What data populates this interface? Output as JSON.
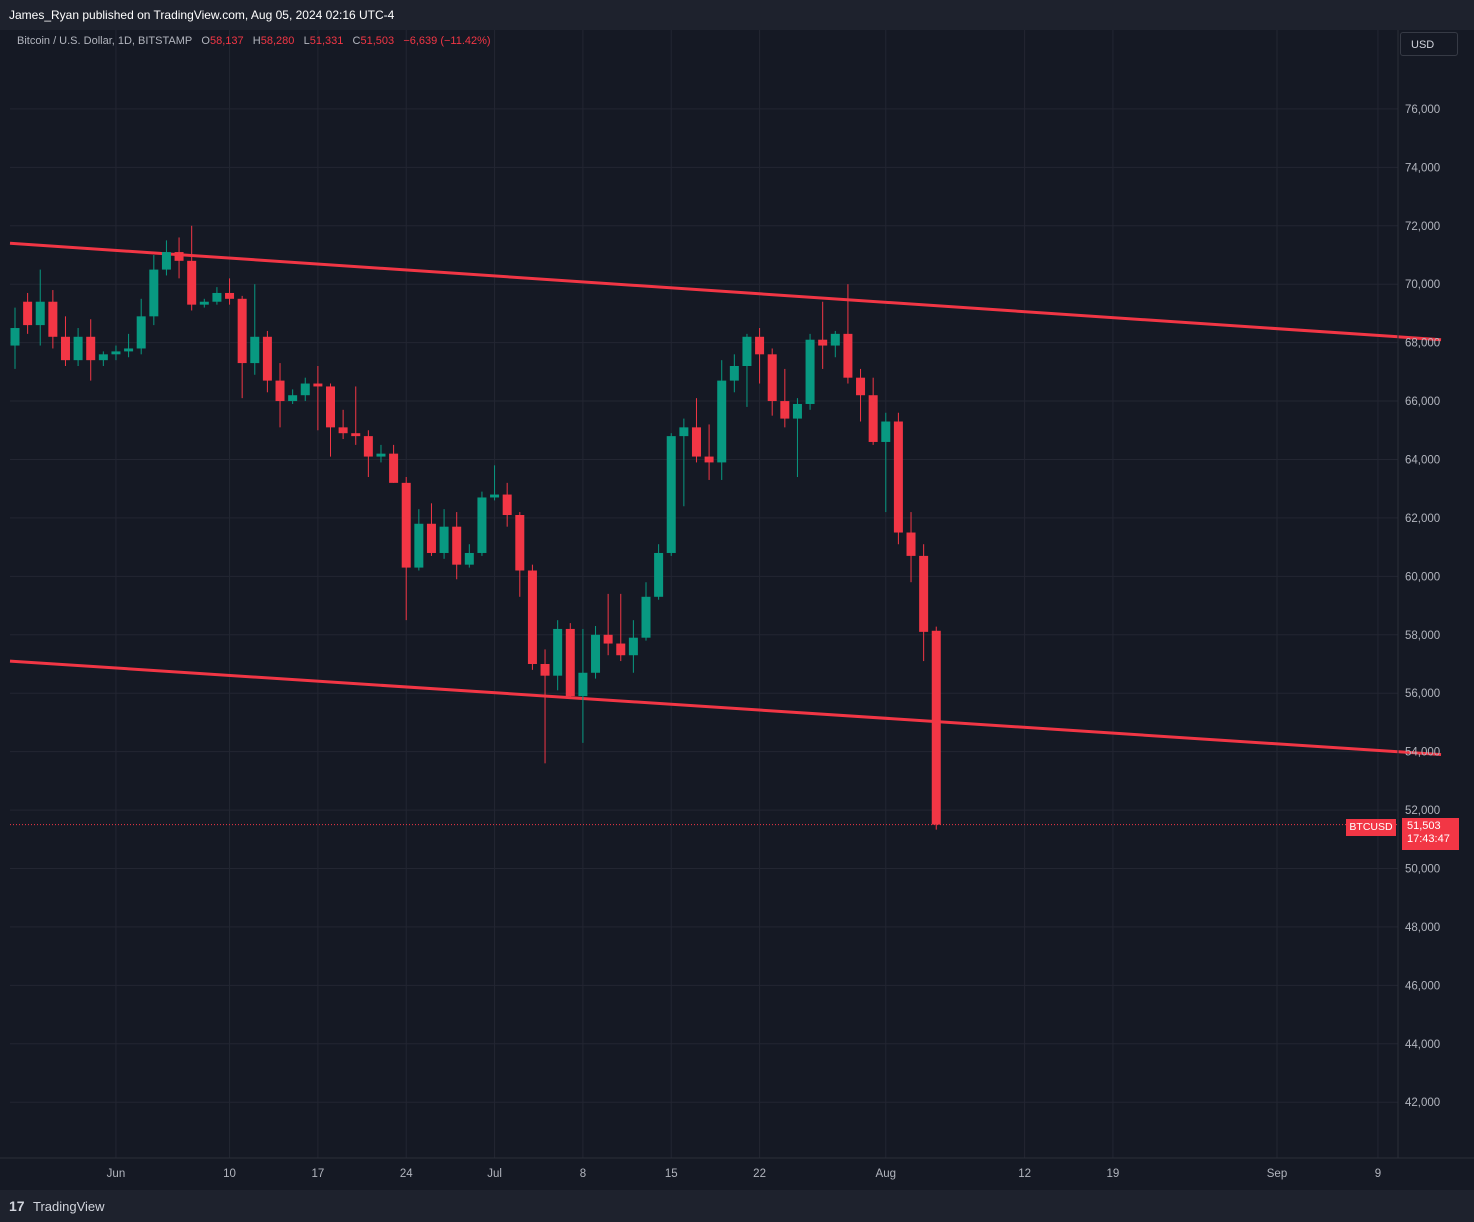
{
  "header": {
    "published": "James_Ryan published on TradingView.com, Aug 05, 2024 02:16 UTC-4"
  },
  "legend": {
    "symbol": "Bitcoin / U.S. Dollar, 1D, BITSTAMP",
    "open_label": "O",
    "open": "58,137",
    "high_label": "H",
    "high": "58,280",
    "low_label": "L",
    "low": "51,331",
    "close_label": "C",
    "close": "51,503",
    "change": "−6,639 (−11.42%)"
  },
  "currency_button": "USD",
  "price_tag": {
    "symbol": "BTCUSD",
    "price": "51,503",
    "countdown": "17:43:47"
  },
  "footer": {
    "logo": "17",
    "brand": "TradingView"
  },
  "colors": {
    "up": "#089981",
    "down": "#f23645",
    "channel": "#f23645",
    "grid": "#232632",
    "background": "#151924"
  },
  "chart_data": {
    "type": "candlestick",
    "title": "Bitcoin / U.S. Dollar, 1D, BITSTAMP",
    "ylim": [
      40000,
      78000
    ],
    "y_ticks": [
      "76,000",
      "74,000",
      "72,000",
      "70,000",
      "68,000",
      "66,000",
      "64,000",
      "62,000",
      "60,000",
      "58,000",
      "56,000",
      "54,000",
      "52,000",
      "50,000",
      "48,000",
      "46,000",
      "44,000",
      "42,000"
    ],
    "x_ticks": [
      {
        "label": "Jun",
        "date": "2024-06-01"
      },
      {
        "label": "10",
        "date": "2024-06-10"
      },
      {
        "label": "17",
        "date": "2024-06-17"
      },
      {
        "label": "24",
        "date": "2024-06-24"
      },
      {
        "label": "Jul",
        "date": "2024-07-01"
      },
      {
        "label": "8",
        "date": "2024-07-08"
      },
      {
        "label": "15",
        "date": "2024-07-15"
      },
      {
        "label": "22",
        "date": "2024-07-22"
      },
      {
        "label": "Aug",
        "date": "2024-08-01"
      },
      {
        "label": "12",
        "date": "2024-08-12"
      },
      {
        "label": "19",
        "date": "2024-08-19"
      },
      {
        "label": "Sep",
        "date": "2024-09-01"
      },
      {
        "label": "9",
        "date": "2024-09-09"
      }
    ],
    "candles": [
      {
        "date": "2024-05-24",
        "o": 67900,
        "h": 69200,
        "l": 67100,
        "c": 68500
      },
      {
        "date": "2024-05-25",
        "o": 69400,
        "h": 69700,
        "l": 68300,
        "c": 68600
      },
      {
        "date": "2024-05-26",
        "o": 68600,
        "h": 70500,
        "l": 67900,
        "c": 69400
      },
      {
        "date": "2024-05-27",
        "o": 69400,
        "h": 69800,
        "l": 67800,
        "c": 68200
      },
      {
        "date": "2024-05-28",
        "o": 68200,
        "h": 68900,
        "l": 67200,
        "c": 67400
      },
      {
        "date": "2024-05-29",
        "o": 67400,
        "h": 68500,
        "l": 67200,
        "c": 68200
      },
      {
        "date": "2024-05-30",
        "o": 68200,
        "h": 68800,
        "l": 66700,
        "c": 67400
      },
      {
        "date": "2024-05-31",
        "o": 67400,
        "h": 67700,
        "l": 67200,
        "c": 67600
      },
      {
        "date": "2024-06-01",
        "o": 67600,
        "h": 67900,
        "l": 67400,
        "c": 67700
      },
      {
        "date": "2024-06-02",
        "o": 67700,
        "h": 68300,
        "l": 67500,
        "c": 67800
      },
      {
        "date": "2024-06-03",
        "o": 67800,
        "h": 69500,
        "l": 67600,
        "c": 68900
      },
      {
        "date": "2024-06-04",
        "o": 68900,
        "h": 71000,
        "l": 68600,
        "c": 70500
      },
      {
        "date": "2024-06-05",
        "o": 70500,
        "h": 71500,
        "l": 70300,
        "c": 71100
      },
      {
        "date": "2024-06-06",
        "o": 71100,
        "h": 71600,
        "l": 70200,
        "c": 70800
      },
      {
        "date": "2024-06-07",
        "o": 70800,
        "h": 72000,
        "l": 69100,
        "c": 69300
      },
      {
        "date": "2024-06-08",
        "o": 69300,
        "h": 69500,
        "l": 69200,
        "c": 69400
      },
      {
        "date": "2024-06-09",
        "o": 69400,
        "h": 69900,
        "l": 69300,
        "c": 69700
      },
      {
        "date": "2024-06-10",
        "o": 69700,
        "h": 70200,
        "l": 69300,
        "c": 69500
      },
      {
        "date": "2024-06-11",
        "o": 69500,
        "h": 69600,
        "l": 66100,
        "c": 67300
      },
      {
        "date": "2024-06-12",
        "o": 67300,
        "h": 70000,
        "l": 66900,
        "c": 68200
      },
      {
        "date": "2024-06-13",
        "o": 68200,
        "h": 68400,
        "l": 66300,
        "c": 66700
      },
      {
        "date": "2024-06-14",
        "o": 66700,
        "h": 67300,
        "l": 65100,
        "c": 66000
      },
      {
        "date": "2024-06-15",
        "o": 66000,
        "h": 66400,
        "l": 65900,
        "c": 66200
      },
      {
        "date": "2024-06-16",
        "o": 66200,
        "h": 66800,
        "l": 66000,
        "c": 66600
      },
      {
        "date": "2024-06-17",
        "o": 66600,
        "h": 67200,
        "l": 65000,
        "c": 66500
      },
      {
        "date": "2024-06-18",
        "o": 66500,
        "h": 66600,
        "l": 64100,
        "c": 65100
      },
      {
        "date": "2024-06-19",
        "o": 65100,
        "h": 65700,
        "l": 64700,
        "c": 64900
      },
      {
        "date": "2024-06-20",
        "o": 64900,
        "h": 66500,
        "l": 64500,
        "c": 64800
      },
      {
        "date": "2024-06-21",
        "o": 64800,
        "h": 65000,
        "l": 63400,
        "c": 64100
      },
      {
        "date": "2024-06-22",
        "o": 64100,
        "h": 64500,
        "l": 63900,
        "c": 64200
      },
      {
        "date": "2024-06-23",
        "o": 64200,
        "h": 64500,
        "l": 63200,
        "c": 63200
      },
      {
        "date": "2024-06-24",
        "o": 63200,
        "h": 63400,
        "l": 58500,
        "c": 60300
      },
      {
        "date": "2024-06-25",
        "o": 60300,
        "h": 62300,
        "l": 60200,
        "c": 61800
      },
      {
        "date": "2024-06-26",
        "o": 61800,
        "h": 62500,
        "l": 60700,
        "c": 60800
      },
      {
        "date": "2024-06-27",
        "o": 60800,
        "h": 62300,
        "l": 60600,
        "c": 61700
      },
      {
        "date": "2024-06-28",
        "o": 61700,
        "h": 62200,
        "l": 59900,
        "c": 60400
      },
      {
        "date": "2024-06-29",
        "o": 60400,
        "h": 61100,
        "l": 60300,
        "c": 60800
      },
      {
        "date": "2024-06-30",
        "o": 60800,
        "h": 62900,
        "l": 60700,
        "c": 62700
      },
      {
        "date": "2024-07-01",
        "o": 62700,
        "h": 63800,
        "l": 62600,
        "c": 62800
      },
      {
        "date": "2024-07-02",
        "o": 62800,
        "h": 63200,
        "l": 61700,
        "c": 62100
      },
      {
        "date": "2024-07-03",
        "o": 62100,
        "h": 62200,
        "l": 59300,
        "c": 60200
      },
      {
        "date": "2024-07-04",
        "o": 60200,
        "h": 60400,
        "l": 56800,
        "c": 57000
      },
      {
        "date": "2024-07-05",
        "o": 57000,
        "h": 57500,
        "l": 53600,
        "c": 56600
      },
      {
        "date": "2024-07-06",
        "o": 56600,
        "h": 58500,
        "l": 56100,
        "c": 58200
      },
      {
        "date": "2024-07-07",
        "o": 58200,
        "h": 58400,
        "l": 55800,
        "c": 55900
      },
      {
        "date": "2024-07-08",
        "o": 55900,
        "h": 58200,
        "l": 54300,
        "c": 56700
      },
      {
        "date": "2024-07-09",
        "o": 56700,
        "h": 58300,
        "l": 56500,
        "c": 58000
      },
      {
        "date": "2024-07-10",
        "o": 58000,
        "h": 59400,
        "l": 57300,
        "c": 57700
      },
      {
        "date": "2024-07-11",
        "o": 57700,
        "h": 59400,
        "l": 57100,
        "c": 57300
      },
      {
        "date": "2024-07-12",
        "o": 57300,
        "h": 58500,
        "l": 56700,
        "c": 57900
      },
      {
        "date": "2024-07-13",
        "o": 57900,
        "h": 59800,
        "l": 57800,
        "c": 59300
      },
      {
        "date": "2024-07-14",
        "o": 59300,
        "h": 61100,
        "l": 59200,
        "c": 60800
      },
      {
        "date": "2024-07-15",
        "o": 60800,
        "h": 64900,
        "l": 60700,
        "c": 64800
      },
      {
        "date": "2024-07-16",
        "o": 64800,
        "h": 65400,
        "l": 62400,
        "c": 65100
      },
      {
        "date": "2024-07-17",
        "o": 65100,
        "h": 66100,
        "l": 63900,
        "c": 64100
      },
      {
        "date": "2024-07-18",
        "o": 64100,
        "h": 65200,
        "l": 63300,
        "c": 63900
      },
      {
        "date": "2024-07-19",
        "o": 63900,
        "h": 67400,
        "l": 63300,
        "c": 66700
      },
      {
        "date": "2024-07-20",
        "o": 66700,
        "h": 67600,
        "l": 66300,
        "c": 67200
      },
      {
        "date": "2024-07-21",
        "o": 67200,
        "h": 68300,
        "l": 65800,
        "c": 68200
      },
      {
        "date": "2024-07-22",
        "o": 68200,
        "h": 68500,
        "l": 66600,
        "c": 67600
      },
      {
        "date": "2024-07-23",
        "o": 67600,
        "h": 67800,
        "l": 65500,
        "c": 66000
      },
      {
        "date": "2024-07-24",
        "o": 66000,
        "h": 67100,
        "l": 65100,
        "c": 65400
      },
      {
        "date": "2024-07-25",
        "o": 65400,
        "h": 66100,
        "l": 63400,
        "c": 65900
      },
      {
        "date": "2024-07-26",
        "o": 65900,
        "h": 68300,
        "l": 65700,
        "c": 68100
      },
      {
        "date": "2024-07-27",
        "o": 68100,
        "h": 69400,
        "l": 67100,
        "c": 67900
      },
      {
        "date": "2024-07-28",
        "o": 67900,
        "h": 68400,
        "l": 67500,
        "c": 68300
      },
      {
        "date": "2024-07-29",
        "o": 68300,
        "h": 70000,
        "l": 66600,
        "c": 66800
      },
      {
        "date": "2024-07-30",
        "o": 66800,
        "h": 67100,
        "l": 65300,
        "c": 66200
      },
      {
        "date": "2024-07-31",
        "o": 66200,
        "h": 66800,
        "l": 64500,
        "c": 64600
      },
      {
        "date": "2024-08-01",
        "o": 64600,
        "h": 65600,
        "l": 62200,
        "c": 65300
      },
      {
        "date": "2024-08-02",
        "o": 65300,
        "h": 65600,
        "l": 61100,
        "c": 61500
      },
      {
        "date": "2024-08-03",
        "o": 61500,
        "h": 62200,
        "l": 59800,
        "c": 60700
      },
      {
        "date": "2024-08-04",
        "o": 60700,
        "h": 61100,
        "l": 57100,
        "c": 58100
      },
      {
        "date": "2024-08-05",
        "o": 58137,
        "h": 58280,
        "l": 51331,
        "c": 51503
      }
    ],
    "channel_lines": [
      {
        "name": "upper",
        "start": {
          "date": "2024-05-24",
          "value": 71400
        },
        "end": {
          "date": "2024-09-14",
          "value": 68100
        }
      },
      {
        "name": "lower",
        "start": {
          "date": "2024-05-24",
          "value": 57100
        },
        "end": {
          "date": "2024-09-14",
          "value": 53900
        }
      }
    ],
    "last_price": 51503,
    "grid": true
  }
}
